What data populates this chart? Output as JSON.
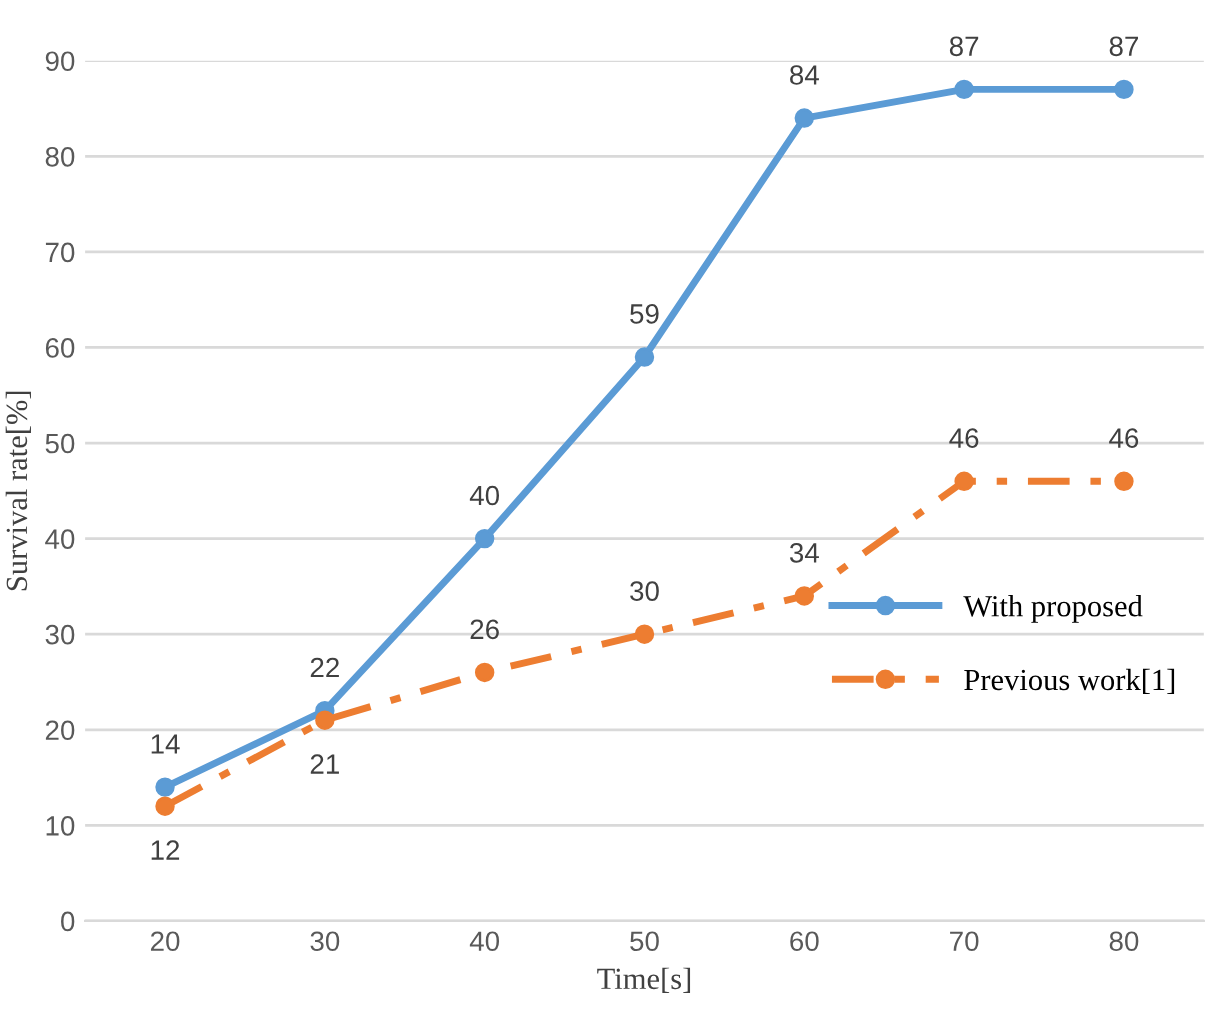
{
  "chart_data": {
    "type": "line",
    "xlabel": "Time[s]",
    "ylabel": "Survival rate[%]",
    "categories": [
      "20",
      "30",
      "40",
      "50",
      "60",
      "70",
      "80"
    ],
    "series": [
      {
        "name": "With proposed",
        "color": "#5b9bd5",
        "values": [
          14,
          22,
          40,
          59,
          84,
          87,
          87
        ],
        "line_style": "solid"
      },
      {
        "name": "Previous work[1]",
        "color": "#ed7d31",
        "values": [
          12,
          21,
          26,
          30,
          34,
          46,
          46
        ],
        "line_style": "dashed"
      }
    ],
    "ylim": [
      0,
      90
    ],
    "yticks": [
      0,
      10,
      20,
      30,
      40,
      50,
      60,
      70,
      80,
      90
    ],
    "grid": "y",
    "legend": "right",
    "marker": "circle",
    "data_labels": true
  }
}
